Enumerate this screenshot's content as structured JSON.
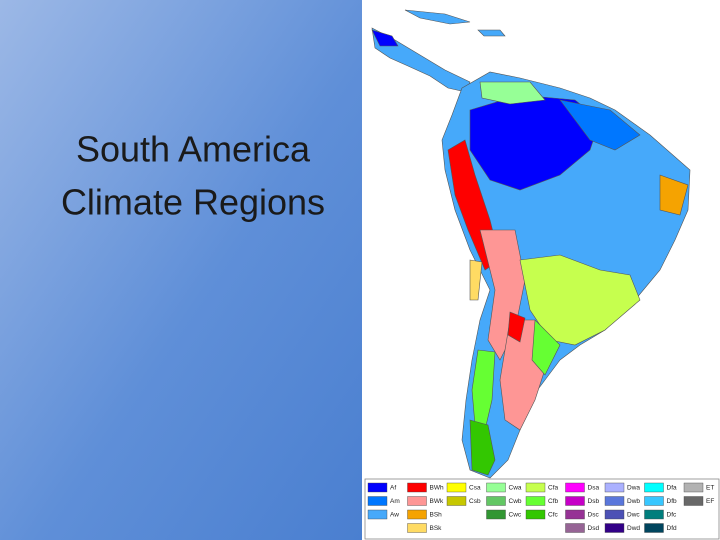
{
  "slide": {
    "title": [
      "South America",
      "Climate Regions"
    ],
    "legend": [
      [
        {
          "code": "Af",
          "color": "#0000fe"
        },
        {
          "code": "Am",
          "color": "#0077ff"
        },
        {
          "code": "Aw",
          "color": "#46a9fa"
        }
      ],
      [
        {
          "code": "BWh",
          "color": "#fe0000"
        },
        {
          "code": "BWk",
          "color": "#fe9695"
        },
        {
          "code": "BSh",
          "color": "#f5a301"
        },
        {
          "code": "BSk",
          "color": "#ffdb63"
        }
      ],
      [
        {
          "code": "Csa",
          "color": "#ffff00"
        },
        {
          "code": "Csb",
          "color": "#c6c700"
        }
      ],
      [
        {
          "code": "Cwa",
          "color": "#96ff96"
        },
        {
          "code": "Cwb",
          "color": "#63c764"
        },
        {
          "code": "Cwc",
          "color": "#329633"
        }
      ],
      [
        {
          "code": "Cfa",
          "color": "#c6ff4e"
        },
        {
          "code": "Cfb",
          "color": "#66ff33"
        },
        {
          "code": "Cfc",
          "color": "#33c701"
        }
      ],
      [
        {
          "code": "Dsa",
          "color": "#ff00fe"
        },
        {
          "code": "Dsb",
          "color": "#c600c7"
        },
        {
          "code": "Dsc",
          "color": "#963295"
        },
        {
          "code": "Dsd",
          "color": "#966495"
        }
      ],
      [
        {
          "code": "Dwa",
          "color": "#abb1ff"
        },
        {
          "code": "Dwb",
          "color": "#5a77db"
        },
        {
          "code": "Dwc",
          "color": "#4c51b5"
        },
        {
          "code": "Dwd",
          "color": "#320087"
        }
      ],
      [
        {
          "code": "Dfa",
          "color": "#00ffff"
        },
        {
          "code": "Dfb",
          "color": "#38c7ff"
        },
        {
          "code": "Dfc",
          "color": "#007e7d"
        },
        {
          "code": "Dfd",
          "color": "#00455e"
        }
      ],
      [
        {
          "code": "ET",
          "color": "#b2b2b2"
        },
        {
          "code": "EF",
          "color": "#686868"
        }
      ]
    ]
  }
}
